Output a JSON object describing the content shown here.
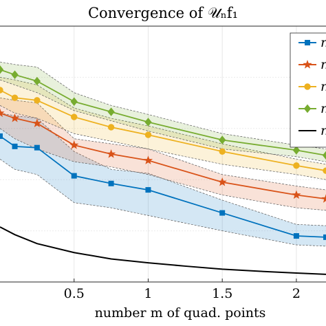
{
  "chart_data": {
    "type": "line",
    "title": "Convergence of 𝒰ₙf₁",
    "xlabel": "number m of quad. points",
    "ylabel": "",
    "xlim": [
      0.0,
      2.2
    ],
    "x_ticks": [
      0.5,
      1,
      1.5,
      2
    ],
    "x_tick_labels": [
      "0.5",
      "1",
      "1.5",
      "2"
    ],
    "log_scale": false,
    "grid": true,
    "legend_position": "right",
    "series": [
      {
        "name": "n",
        "color": "#0072BD",
        "marker": "square",
        "x": [
          0.0,
          0.1,
          0.25,
          0.5,
          0.75,
          1.0,
          1.5,
          2.0,
          2.2
        ],
        "y": [
          0.57,
          0.53,
          0.525,
          0.415,
          0.385,
          0.36,
          0.27,
          0.18,
          0.175
        ],
        "band_upper": [
          0.66,
          0.65,
          0.64,
          0.51,
          0.44,
          0.425,
          0.32,
          0.225,
          0.22
        ],
        "band_lower": [
          0.48,
          0.44,
          0.42,
          0.31,
          0.29,
          0.26,
          0.2,
          0.145,
          0.14
        ]
      },
      {
        "name": "n",
        "color": "#D95319",
        "marker": "star",
        "x": [
          0.0,
          0.1,
          0.25,
          0.5,
          0.75,
          1.0,
          1.5,
          2.0,
          2.2
        ],
        "y": [
          0.66,
          0.64,
          0.62,
          0.535,
          0.5,
          0.475,
          0.39,
          0.34,
          0.325
        ],
        "band_upper": [
          0.72,
          0.71,
          0.7,
          0.56,
          0.54,
          0.52,
          0.42,
          0.375,
          0.36
        ],
        "band_lower": [
          0.6,
          0.56,
          0.52,
          0.47,
          0.45,
          0.42,
          0.34,
          0.29,
          0.28
        ]
      },
      {
        "name": "n",
        "color": "#EDB120",
        "marker": "circle",
        "x": [
          0.0,
          0.1,
          0.25,
          0.5,
          0.75,
          1.0,
          1.5,
          2.0,
          2.2
        ],
        "y": [
          0.75,
          0.72,
          0.71,
          0.645,
          0.605,
          0.575,
          0.51,
          0.455,
          0.435
        ],
        "band_upper": [
          0.8,
          0.79,
          0.77,
          0.68,
          0.64,
          0.61,
          0.54,
          0.48,
          0.46
        ],
        "band_lower": [
          0.69,
          0.66,
          0.64,
          0.58,
          0.55,
          0.52,
          0.46,
          0.42,
          0.4
        ]
      },
      {
        "name": "n",
        "color": "#77AC30",
        "marker": "diamond",
        "x": [
          0.0,
          0.1,
          0.25,
          0.5,
          0.75,
          1.0,
          1.5,
          2.0,
          2.2
        ],
        "y": [
          0.83,
          0.81,
          0.785,
          0.705,
          0.665,
          0.625,
          0.555,
          0.515,
          0.495
        ],
        "band_upper": [
          0.86,
          0.85,
          0.84,
          0.74,
          0.69,
          0.655,
          0.58,
          0.535,
          0.52
        ],
        "band_lower": [
          0.79,
          0.77,
          0.74,
          0.67,
          0.63,
          0.59,
          0.52,
          0.49,
          0.47
        ]
      },
      {
        "name": "n",
        "color": "#000000",
        "marker": "none",
        "x": [
          0.0,
          0.1,
          0.25,
          0.5,
          0.75,
          1.0,
          1.25,
          1.5,
          1.75,
          2.0,
          2.2
        ],
        "y": [
          0.215,
          0.185,
          0.15,
          0.115,
          0.09,
          0.075,
          0.062,
          0.05,
          0.042,
          0.035,
          0.03
        ]
      }
    ]
  }
}
